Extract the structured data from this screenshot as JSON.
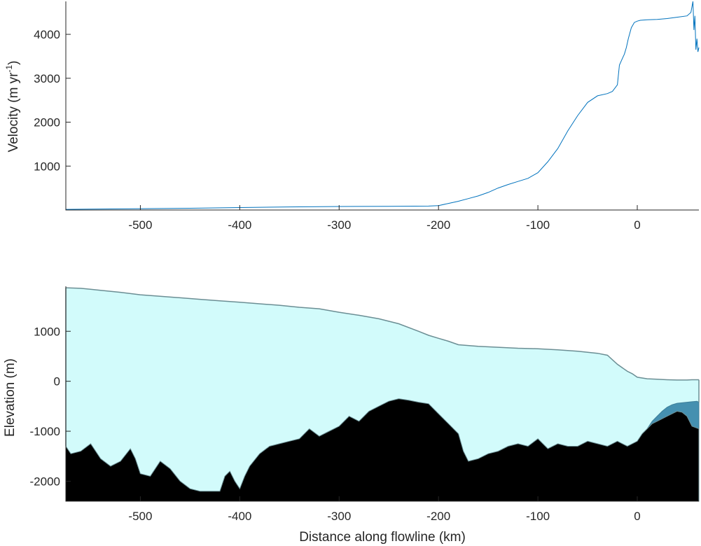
{
  "chart_data": [
    {
      "type": "line",
      "xlabel": "",
      "ylabel": "Velocity (m yr",
      "ylabel_superscript": "-1",
      "ylabel_suffix": ")",
      "xlim": [
        -575,
        62
      ],
      "ylim": [
        0,
        4750
      ],
      "xticks": [
        -500,
        -400,
        -300,
        -200,
        -100,
        0
      ],
      "yticks": [
        1000,
        2000,
        3000,
        4000
      ],
      "color": "#0072BD",
      "series": [
        {
          "x": [
            -575,
            -550,
            -520,
            -500,
            -450,
            -400,
            -350,
            -300,
            -250,
            -210,
            -200,
            -190,
            -180,
            -170,
            -160,
            -150,
            -140,
            -130,
            -120,
            -110,
            -100,
            -90,
            -80,
            -70,
            -60,
            -50,
            -40,
            -30,
            -25,
            -20,
            -18,
            -15,
            -13,
            -11,
            -9,
            -6,
            -3,
            0,
            3,
            10,
            20,
            30,
            40,
            50,
            54,
            56,
            57,
            58,
            59,
            60,
            61,
            62
          ],
          "y": [
            15,
            20,
            25,
            30,
            40,
            55,
            70,
            80,
            85,
            90,
            100,
            150,
            200,
            260,
            320,
            400,
            500,
            580,
            650,
            720,
            850,
            1100,
            1400,
            1800,
            2150,
            2450,
            2600,
            2650,
            2700,
            2850,
            3300,
            3450,
            3550,
            3700,
            3900,
            4150,
            4270,
            4300,
            4320,
            4330,
            4340,
            4360,
            4390,
            4420,
            4500,
            4750,
            4100,
            4420,
            3650,
            3900,
            3600,
            3700
          ]
        }
      ]
    },
    {
      "type": "area",
      "xlabel": "Distance along flowline (km)",
      "ylabel": "Elevation (m)",
      "xlim": [
        -575,
        62
      ],
      "ylim": [
        -2400,
        1900
      ],
      "xticks": [
        -500,
        -400,
        -300,
        -200,
        -100,
        0
      ],
      "yticks": [
        -2000,
        -1000,
        0,
        1000
      ],
      "colors": {
        "ice": "#D2FBFB",
        "surface_line": "#6B8E94",
        "bed": "#000000",
        "ocean": "#4590B0",
        "ocean_edge": "#3E7F9A"
      },
      "series": [
        {
          "name": "surface",
          "x": [
            -575,
            -560,
            -540,
            -520,
            -500,
            -480,
            -460,
            -440,
            -420,
            -400,
            -380,
            -360,
            -340,
            -320,
            -300,
            -280,
            -260,
            -240,
            -220,
            -210,
            -200,
            -190,
            -180,
            -160,
            -140,
            -120,
            -100,
            -80,
            -60,
            -40,
            -30,
            -20,
            -10,
            -5,
            0,
            10,
            20,
            30,
            40,
            50,
            55,
            62
          ],
          "y": [
            1870,
            1860,
            1820,
            1780,
            1730,
            1700,
            1670,
            1640,
            1610,
            1580,
            1550,
            1520,
            1480,
            1450,
            1380,
            1320,
            1250,
            1150,
            1000,
            920,
            860,
            800,
            730,
            700,
            680,
            660,
            650,
            630,
            600,
            560,
            520,
            340,
            200,
            150,
            80,
            50,
            40,
            30,
            25,
            25,
            30,
            30
          ]
        },
        {
          "name": "bed",
          "x": [
            -575,
            -570,
            -560,
            -550,
            -540,
            -530,
            -520,
            -510,
            -505,
            -500,
            -490,
            -480,
            -470,
            -460,
            -450,
            -440,
            -430,
            -420,
            -415,
            -410,
            -405,
            -400,
            -395,
            -390,
            -380,
            -370,
            -360,
            -350,
            -340,
            -330,
            -320,
            -310,
            -300,
            -290,
            -280,
            -270,
            -260,
            -250,
            -240,
            -230,
            -220,
            -210,
            -200,
            -190,
            -180,
            -175,
            -170,
            -160,
            -150,
            -140,
            -130,
            -120,
            -110,
            -100,
            -90,
            -80,
            -70,
            -60,
            -50,
            -40,
            -30,
            -20,
            -10,
            0,
            5,
            10,
            15,
            20,
            25,
            30,
            35,
            40,
            45,
            50,
            55,
            62
          ],
          "y": [
            -1300,
            -1450,
            -1400,
            -1250,
            -1550,
            -1700,
            -1600,
            -1350,
            -1550,
            -1850,
            -1900,
            -1600,
            -1750,
            -2000,
            -2150,
            -2200,
            -2200,
            -2200,
            -1900,
            -1800,
            -2000,
            -2150,
            -1900,
            -1700,
            -1450,
            -1300,
            -1250,
            -1200,
            -1150,
            -950,
            -1100,
            -1000,
            -900,
            -700,
            -800,
            -600,
            -500,
            -400,
            -350,
            -380,
            -420,
            -450,
            -650,
            -850,
            -1050,
            -1400,
            -1600,
            -1550,
            -1450,
            -1400,
            -1300,
            -1250,
            -1300,
            -1150,
            -1350,
            -1250,
            -1300,
            -1300,
            -1200,
            -1250,
            -1300,
            -1200,
            -1300,
            -1200,
            -1050,
            -950,
            -850,
            -800,
            -750,
            -700,
            -650,
            -600,
            -620,
            -700,
            -900,
            -950
          ]
        },
        {
          "name": "ocean_top",
          "x": [
            0,
            5,
            10,
            15,
            20,
            25,
            30,
            35,
            40,
            45,
            50,
            55,
            60,
            62
          ],
          "y": [
            -1200,
            -1100,
            -950,
            -800,
            -700,
            -600,
            -520,
            -470,
            -440,
            -430,
            -420,
            -410,
            -400,
            -420
          ]
        }
      ]
    }
  ]
}
